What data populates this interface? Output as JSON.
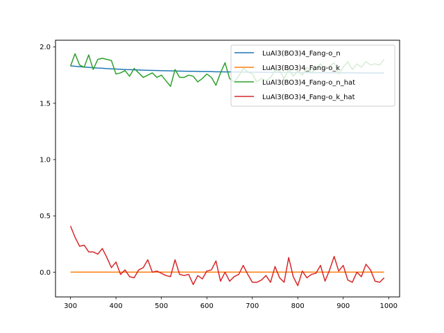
{
  "chart_data": {
    "type": "line",
    "title": "",
    "xlabel": "",
    "ylabel": "",
    "xlim": [
      267,
      1024
    ],
    "ylim": [
      -0.22,
      2.06
    ],
    "xticks": [
      300,
      400,
      500,
      600,
      700,
      800,
      900,
      1000
    ],
    "yticks": [
      0.0,
      0.5,
      1.0,
      1.5,
      2.0
    ],
    "xtick_labels": [
      "300",
      "400",
      "500",
      "600",
      "700",
      "800",
      "900",
      "1000"
    ],
    "ytick_labels": [
      "0.0",
      "0.5",
      "1.0",
      "1.5",
      "2.0"
    ],
    "grid": false,
    "legend_position": "upper right",
    "x": [
      300,
      310,
      320,
      330,
      340,
      350,
      360,
      370,
      380,
      390,
      400,
      410,
      420,
      430,
      440,
      450,
      460,
      470,
      480,
      490,
      500,
      510,
      520,
      530,
      540,
      550,
      560,
      570,
      580,
      590,
      600,
      610,
      620,
      630,
      640,
      650,
      660,
      670,
      680,
      690,
      700,
      710,
      720,
      730,
      740,
      750,
      760,
      770,
      780,
      790,
      800,
      810,
      820,
      830,
      840,
      850,
      860,
      870,
      880,
      890,
      900,
      910,
      920,
      930,
      940,
      950,
      960,
      970,
      980,
      990
    ],
    "series": [
      {
        "name": "LuAl3(BO3)4_Fang-o_n",
        "color": "#1f77b4",
        "values": [
          1.832,
          1.829,
          1.825,
          1.822,
          1.819,
          1.816,
          1.813,
          1.811,
          1.808,
          1.806,
          1.804,
          1.802,
          1.8,
          1.799,
          1.797,
          1.796,
          1.794,
          1.793,
          1.792,
          1.791,
          1.79,
          1.789,
          1.788,
          1.787,
          1.786,
          1.785,
          1.784,
          1.784,
          1.783,
          1.782,
          1.782,
          1.781,
          1.78,
          1.78,
          1.779,
          1.779,
          1.778,
          1.778,
          1.777,
          1.777,
          1.776,
          1.776,
          1.776,
          1.775,
          1.775,
          1.775,
          1.774,
          1.774,
          1.774,
          1.773,
          1.773,
          1.773,
          1.772,
          1.772,
          1.772,
          1.772,
          1.771,
          1.771,
          1.771,
          1.771,
          1.77,
          1.77,
          1.77,
          1.77,
          1.77,
          1.769,
          1.769,
          1.769,
          1.769,
          1.769
        ]
      },
      {
        "name": "LuAl3(BO3)4_Fang-o_k",
        "color": "#ff7f0e",
        "values": [
          0,
          0,
          0,
          0,
          0,
          0,
          0,
          0,
          0,
          0,
          0,
          0,
          0,
          0,
          0,
          0,
          0,
          0,
          0,
          0,
          0,
          0,
          0,
          0,
          0,
          0,
          0,
          0,
          0,
          0,
          0,
          0,
          0,
          0,
          0,
          0,
          0,
          0,
          0,
          0,
          0,
          0,
          0,
          0,
          0,
          0,
          0,
          0,
          0,
          0,
          0,
          0,
          0,
          0,
          0,
          0,
          0,
          0,
          0,
          0,
          0,
          0,
          0,
          0,
          0,
          0,
          0,
          0,
          0,
          0
        ]
      },
      {
        "name": "LuAl3(BO3)4_Fang-o_n_hat",
        "color": "#2ca02c",
        "values": [
          1.83,
          1.94,
          1.84,
          1.82,
          1.93,
          1.8,
          1.89,
          1.9,
          1.89,
          1.88,
          1.76,
          1.77,
          1.79,
          1.74,
          1.81,
          1.77,
          1.73,
          1.75,
          1.77,
          1.73,
          1.75,
          1.7,
          1.65,
          1.8,
          1.73,
          1.73,
          1.75,
          1.74,
          1.69,
          1.72,
          1.76,
          1.73,
          1.66,
          1.77,
          1.86,
          1.72,
          1.69,
          1.74,
          1.81,
          1.78,
          1.76,
          1.69,
          1.72,
          1.7,
          1.73,
          1.79,
          1.79,
          1.72,
          1.8,
          1.74,
          1.79,
          1.75,
          1.82,
          1.77,
          1.81,
          1.85,
          1.8,
          1.83,
          1.86,
          1.76,
          1.82,
          1.87,
          1.8,
          1.85,
          1.82,
          1.87,
          1.84,
          1.85,
          1.84,
          1.89
        ]
      },
      {
        "name": "LuAl3(BO3)4_Fang-o_k_hat",
        "color": "#d62728",
        "values": [
          0.41,
          0.31,
          0.23,
          0.24,
          0.18,
          0.18,
          0.16,
          0.21,
          0.13,
          0.04,
          0.09,
          -0.02,
          0.02,
          -0.04,
          -0.05,
          0.02,
          0.04,
          0.11,
          0.0,
          0.01,
          -0.01,
          -0.03,
          -0.04,
          0.11,
          -0.02,
          -0.03,
          -0.02,
          -0.11,
          -0.03,
          -0.06,
          0.01,
          0.02,
          0.1,
          -0.08,
          0.0,
          -0.08,
          -0.04,
          -0.02,
          0.06,
          -0.02,
          -0.09,
          -0.09,
          -0.07,
          -0.03,
          -0.09,
          0.05,
          -0.05,
          -0.09,
          0.13,
          -0.04,
          -0.12,
          0.01,
          -0.05,
          -0.02,
          -0.01,
          0.06,
          -0.08,
          0.02,
          0.14,
          0.01,
          0.06,
          -0.07,
          -0.09,
          0.0,
          -0.04,
          0.07,
          0.02,
          -0.08,
          -0.09,
          -0.05
        ]
      }
    ]
  }
}
